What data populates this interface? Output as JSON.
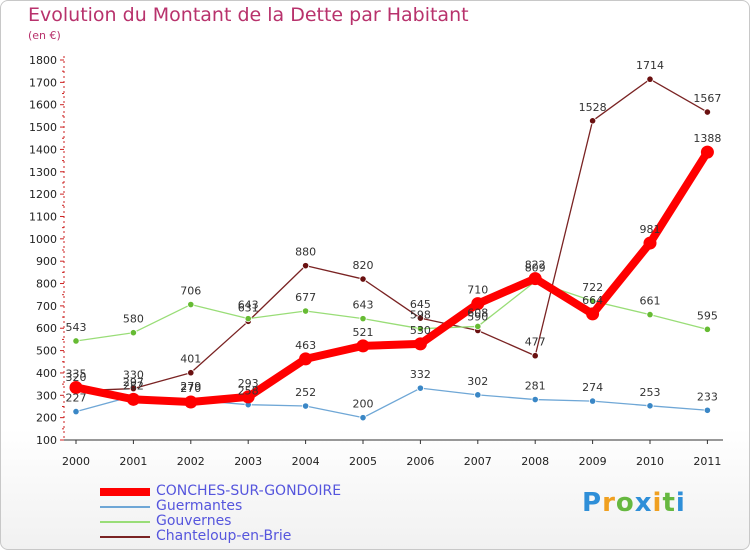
{
  "header": {
    "title": "Evolution du Montant de la Dette par Habitant",
    "subtitle": "(en €)"
  },
  "brand": {
    "logo_text": "Proxiti",
    "colors": [
      "#2f8fd8",
      "#f0a020",
      "#66b840"
    ]
  },
  "chart_data": {
    "type": "line",
    "title": "Evolution du Montant de la Dette par Habitant",
    "subtitle": "(en €)",
    "x": [
      "2000",
      "2001",
      "2002",
      "2003",
      "2004",
      "2005",
      "2006",
      "2007",
      "2008",
      "2009",
      "2010",
      "2011"
    ],
    "ylim": [
      100,
      1800
    ],
    "yticks": [
      100,
      200,
      300,
      400,
      500,
      600,
      700,
      800,
      900,
      1000,
      1100,
      1200,
      1300,
      1400,
      1500,
      1600,
      1700,
      1800
    ],
    "grid": false,
    "legend": "bottom-left",
    "series": [
      {
        "name": "Chanteloup-en-Brie",
        "color": "#7a2323",
        "marker": "#6a1010",
        "values": [
          320,
          330,
          401,
          631,
          880,
          820,
          645,
          590,
          477,
          1528,
          1714,
          1567
        ]
      },
      {
        "name": "Gouvernes",
        "color": "#99dd77",
        "marker": "#66bb33",
        "values": [
          543,
          580,
          706,
          643,
          677,
          643,
          598,
          608,
          809,
          722,
          661,
          595
        ]
      },
      {
        "name": "Guermantes",
        "color": "#6fa7d6",
        "marker": "#3a87c6",
        "values": [
          227,
          297,
          279,
          258,
          252,
          200,
          332,
          302,
          281,
          274,
          253,
          233
        ]
      },
      {
        "name": "CONCHES-SUR-GONDOIRE",
        "color": "#ff0000",
        "marker": "#ff0000",
        "values": [
          335,
          282,
          270,
          293,
          463,
          521,
          530,
          710,
          822,
          664,
          981,
          1388
        ]
      }
    ],
    "legend_order": [
      "CONCHES-SUR-GONDOIRE",
      "Guermantes",
      "Gouvernes",
      "Chanteloup-en-Brie"
    ]
  }
}
